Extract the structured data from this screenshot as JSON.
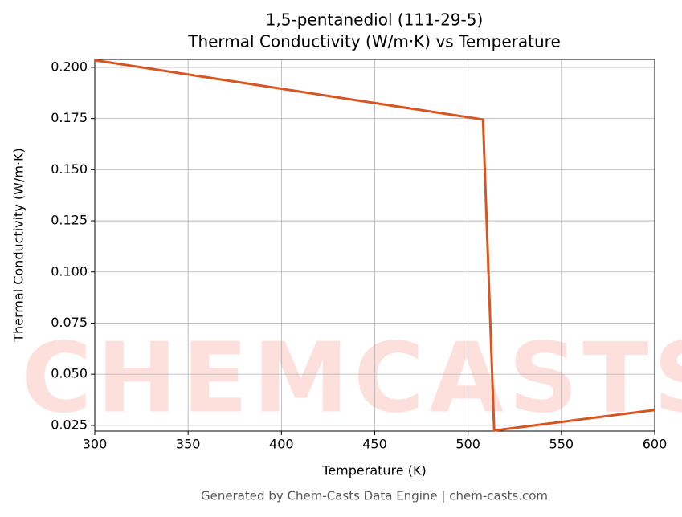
{
  "chart_data": {
    "type": "line",
    "title": "1,5-pentanediol (111-29-5)",
    "subtitle": "Thermal Conductivity (W/m·K) vs Temperature",
    "x_label": "Temperature (K)",
    "y_label": "Thermal Conductivity (W/m·K)",
    "footer": "Generated by Chem-Casts Data Engine | chem-casts.com",
    "watermark": "CHEMCASTS",
    "x": [
      300,
      508,
      514,
      600
    ],
    "series": [
      {
        "name": "Thermal Conductivity",
        "color": "#d9541e",
        "values": [
          0.2035,
          0.1745,
          0.0225,
          0.0325
        ]
      }
    ],
    "xlim": [
      300,
      600
    ],
    "xticks": [
      300,
      350,
      400,
      450,
      500,
      550,
      600
    ],
    "ylim": [
      0.0222,
      0.2039
    ],
    "yticks": [
      0.025,
      {
        "value": 0.05,
        "label": "0.050"
      },
      0.075,
      {
        "value": 0.1,
        "label": "0.100"
      },
      0.125,
      {
        "value": 0.15,
        "label": "0.150"
      },
      0.175,
      {
        "value": 0.2,
        "label": "0.200"
      }
    ],
    "grid": true
  }
}
